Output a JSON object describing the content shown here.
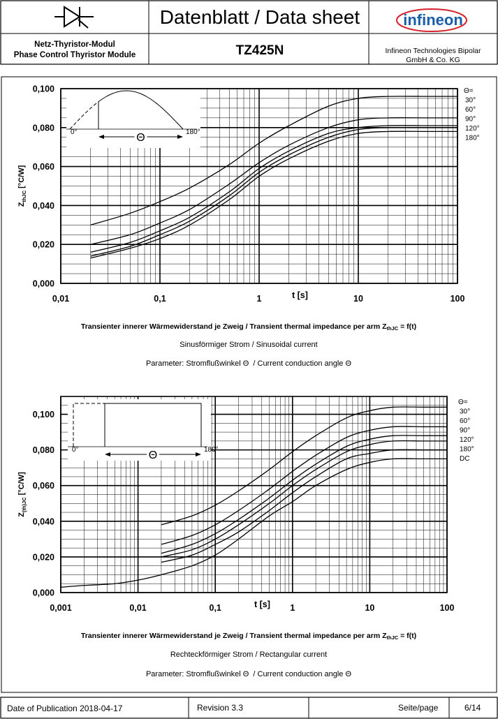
{
  "header": {
    "title": "Datenblatt / Data sheet",
    "logo": "infineon",
    "module_de": "Netz-Thyristor-Modul",
    "module_en": "Phase Control Thyristor Module",
    "part": "TZ425N",
    "company_1": "Infineon Technologies Bipolar",
    "company_2": "GmbH & Co. KG"
  },
  "chart_data": [
    {
      "type": "line",
      "log_x": true,
      "grid": true,
      "minor_grid": true,
      "inset": "sine",
      "x": [
        0.02,
        0.05,
        0.1,
        0.2,
        0.5,
        1,
        2,
        5,
        10,
        20,
        50,
        100
      ],
      "xlim": [
        0.01,
        100
      ],
      "xticks": [
        {
          "value": 0.01,
          "label": "0,01"
        },
        {
          "value": 0.1,
          "label": "0,1"
        },
        1,
        10,
        100
      ],
      "ylim": [
        0,
        0.1
      ],
      "yticks": [
        {
          "value": 0,
          "label": "0,000"
        },
        {
          "value": 0.02,
          "label": "0,020"
        },
        {
          "value": 0.04,
          "label": "0,040"
        },
        {
          "value": 0.06,
          "label": "0,060"
        },
        {
          "value": 0.08,
          "label": "0,080"
        },
        {
          "value": 0.1,
          "label": "0,100"
        }
      ],
      "x_label": "t [s]",
      "y_label": {
        "main": "Z",
        "sub": "thJC",
        "unit": "[°C/W]"
      },
      "legend_title": "Θ=",
      "series": [
        {
          "name": "30°",
          "color": "#000000",
          "values": [
            0.03,
            0.036,
            0.042,
            0.049,
            0.061,
            0.072,
            0.081,
            0.091,
            0.095,
            0.096,
            0.096,
            0.096
          ]
        },
        {
          "name": "60°",
          "color": "#000000",
          "values": [
            0.02,
            0.025,
            0.031,
            0.038,
            0.051,
            0.062,
            0.071,
            0.08,
            0.084,
            0.085,
            0.085,
            0.085
          ]
        },
        {
          "name": "90°",
          "color": "#000000",
          "values": [
            0.016,
            0.021,
            0.027,
            0.034,
            0.047,
            0.059,
            0.068,
            0.077,
            0.08,
            0.081,
            0.081,
            0.081
          ]
        },
        {
          "name": "120°",
          "color": "#000000",
          "values": [
            0.014,
            0.019,
            0.025,
            0.032,
            0.045,
            0.057,
            0.066,
            0.075,
            0.079,
            0.08,
            0.08,
            0.08
          ]
        },
        {
          "name": "180°",
          "color": "#000000",
          "values": [
            0.013,
            0.018,
            0.023,
            0.03,
            0.043,
            0.055,
            0.064,
            0.073,
            0.077,
            0.078,
            0.078,
            0.078
          ]
        }
      ],
      "inset_labels": {
        "start": "0°",
        "end": "180°",
        "angle": "Θ"
      },
      "caption": {
        "main": "Transienter innerer Wärmewiderstand je Zweig / Transient thermal impedance per arm Z",
        "sub": "thJC",
        "tail": " = f(t)"
      },
      "subtitle": "Sinusförmiger Strom / Sinusoidal current",
      "parameter": "Parameter: Stromflußwinkel Θ  / Current conduction angle Θ"
    },
    {
      "type": "line",
      "log_x": true,
      "grid": true,
      "minor_grid": true,
      "inset": "rect",
      "x": [
        0.001,
        0.002,
        0.005,
        0.01,
        0.02,
        0.05,
        0.1,
        0.2,
        0.5,
        1,
        2,
        5,
        10,
        20,
        50,
        100
      ],
      "xlim": [
        0.001,
        100
      ],
      "xticks": [
        {
          "value": 0.001,
          "label": "0,001"
        },
        {
          "value": 0.01,
          "label": "0,01"
        },
        {
          "value": 0.1,
          "label": "0,1"
        },
        1,
        10,
        100
      ],
      "ylim": [
        0,
        0.11
      ],
      "yticks": [
        {
          "value": 0,
          "label": "0,000"
        },
        {
          "value": 0.02,
          "label": "0,020"
        },
        {
          "value": 0.04,
          "label": "0,040"
        },
        {
          "value": 0.06,
          "label": "0,060"
        },
        {
          "value": 0.08,
          "label": "0,080"
        },
        {
          "value": 0.1,
          "label": "0,100"
        }
      ],
      "x_label": "t [s]",
      "y_label": {
        "main": "Z",
        "sub": "(th)JC",
        "unit": "[°C/W]"
      },
      "legend_title": "Θ=",
      "series": [
        {
          "name": "30°",
          "color": "#000000",
          "values": [
            null,
            null,
            null,
            null,
            0.038,
            0.043,
            0.049,
            0.057,
            0.069,
            0.079,
            0.088,
            0.098,
            0.102,
            0.104,
            0.104,
            0.104
          ]
        },
        {
          "name": "60°",
          "color": "#000000",
          "values": [
            null,
            null,
            null,
            null,
            0.027,
            0.032,
            0.038,
            0.046,
            0.058,
            0.068,
            0.077,
            0.087,
            0.091,
            0.093,
            0.093,
            0.093
          ]
        },
        {
          "name": "90°",
          "color": "#000000",
          "values": [
            null,
            null,
            null,
            null,
            0.022,
            0.027,
            0.033,
            0.041,
            0.053,
            0.063,
            0.072,
            0.082,
            0.086,
            0.088,
            0.088,
            0.088
          ]
        },
        {
          "name": "120°",
          "color": "#000000",
          "values": [
            null,
            null,
            null,
            null,
            0.02,
            0.024,
            0.03,
            0.038,
            0.05,
            0.06,
            0.069,
            0.079,
            0.083,
            0.085,
            0.085,
            0.085
          ]
        },
        {
          "name": "180°",
          "color": "#000000",
          "values": [
            null,
            null,
            null,
            null,
            0.017,
            0.021,
            0.027,
            0.034,
            0.046,
            0.056,
            0.065,
            0.075,
            0.078,
            0.08,
            0.08,
            0.08
          ]
        },
        {
          "name": "DC",
          "color": "#000000",
          "values": [
            0.003,
            0.004,
            0.005,
            0.007,
            0.01,
            0.015,
            0.021,
            0.03,
            0.043,
            0.051,
            0.06,
            0.069,
            0.073,
            0.075,
            0.075,
            0.075
          ]
        }
      ],
      "inset_labels": {
        "start": "0°",
        "end": "180°",
        "angle": "Θ"
      },
      "caption": {
        "main": "Transienter innerer Wärmewiderstand je Zweig / Transient thermal impedance per arm Z",
        "sub": "thJC",
        "tail": " = f(t)"
      },
      "subtitle": "Rechteckförmiger Strom / Rectangular current",
      "parameter": "Parameter: Stromflußwinkel Θ  / Current conduction angle Θ"
    }
  ],
  "footer": {
    "date": "Date of Publication 2018-04-17",
    "revision": "Revision 3.3",
    "page_label": "Seite/page",
    "page": "6/14"
  }
}
